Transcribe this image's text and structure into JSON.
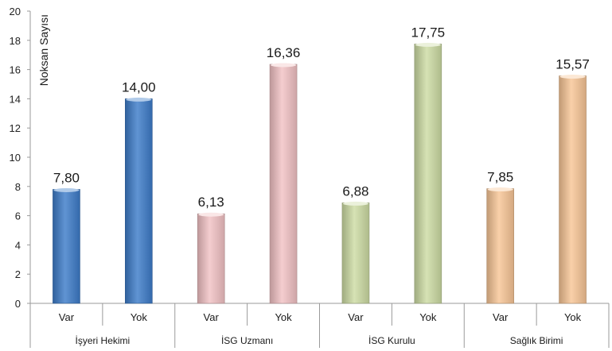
{
  "chart_data": {
    "type": "bar",
    "title": "",
    "ylabel": "Noksan Sayısı",
    "ylim": [
      0,
      20
    ],
    "yticks": [
      0,
      2,
      4,
      6,
      8,
      10,
      12,
      14,
      16,
      18,
      20
    ],
    "grid": false,
    "legend": "none",
    "groups": [
      {
        "name": "İşyeri Hekimi",
        "color": "#3d7cc9",
        "bars": [
          {
            "label": "Var",
            "value": 7.8,
            "value_label": "7,80"
          },
          {
            "label": "Yok",
            "value": 14.0,
            "value_label": "14,00"
          }
        ]
      },
      {
        "name": "İSG Uzmanı",
        "color": "#f2c2c4",
        "bars": [
          {
            "label": "Var",
            "value": 6.13,
            "value_label": "6,13"
          },
          {
            "label": "Yok",
            "value": 16.36,
            "value_label": "16,36"
          }
        ]
      },
      {
        "name": "İSG Kurulu",
        "color": "#cddca4",
        "bars": [
          {
            "label": "Var",
            "value": 6.88,
            "value_label": "6,88"
          },
          {
            "label": "Yok",
            "value": 17.75,
            "value_label": "17,75"
          }
        ]
      },
      {
        "name": "Sağlık Birimi",
        "color": "#f8c696",
        "bars": [
          {
            "label": "Var",
            "value": 7.85,
            "value_label": "7,85"
          },
          {
            "label": "Yok",
            "value": 15.57,
            "value_label": "15,57"
          }
        ]
      }
    ]
  }
}
